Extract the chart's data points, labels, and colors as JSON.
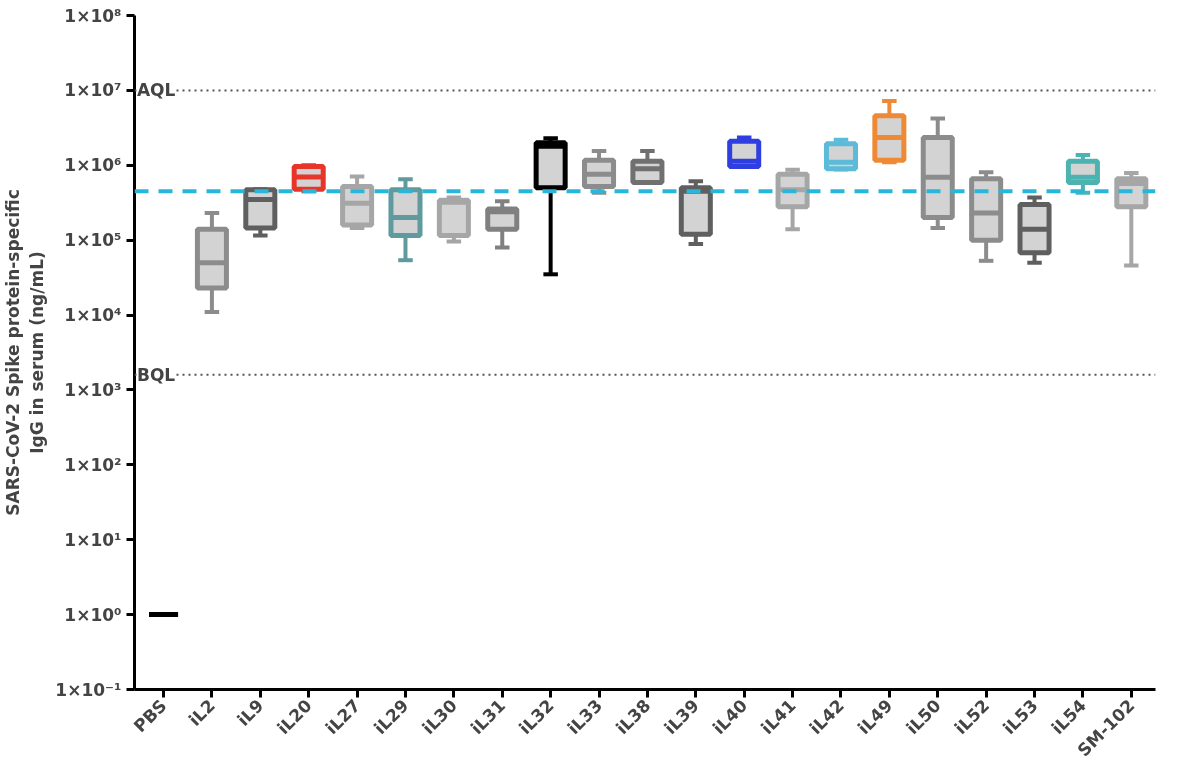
{
  "chart_data": {
    "type": "box",
    "ylabel": "SARS-CoV-2 Spike protein-specific\nIgG in serum (ng/mL)",
    "categories": [
      "PBS",
      "iL2",
      "iL9",
      "iL20",
      "iL27",
      "iL29",
      "iL30",
      "iL31",
      "iL32",
      "iL33",
      "iL38",
      "iL39",
      "iL40",
      "iL41",
      "iL42",
      "iL49",
      "iL50",
      "iL52",
      "iL53",
      "iL54",
      "SM-102"
    ],
    "colors": [
      "#000000",
      "#8c8c8c",
      "#5f5f5f",
      "#e8352a",
      "#a6a6a6",
      "#5e9a9e",
      "#a6a6a6",
      "#808080",
      "#000000",
      "#8c8c8c",
      "#707070",
      "#5f5f5f",
      "#2f3ee0",
      "#a6a6a6",
      "#5bbbd8",
      "#ee8a35",
      "#8c8c8c",
      "#8c8c8c",
      "#5f5f5f",
      "#4db3b0",
      "#a6a6a6"
    ],
    "boxes": [
      {
        "low": 1,
        "q1": 1,
        "median": 1,
        "q3": 1,
        "high": 1
      },
      {
        "low": 11000,
        "q1": 23000,
        "median": 50000,
        "q3": 140000,
        "high": 230000
      },
      {
        "low": 115000,
        "q1": 145000,
        "median": 350000,
        "q3": 470000,
        "high": 480000
      },
      {
        "low": 450000,
        "q1": 480000,
        "median": 700000,
        "q3": 960000,
        "high": 1000000
      },
      {
        "low": 145000,
        "q1": 160000,
        "median": 310000,
        "q3": 520000,
        "high": 710000
      },
      {
        "low": 54000,
        "q1": 115000,
        "median": 200000,
        "q3": 470000,
        "high": 650000
      },
      {
        "low": 96000,
        "q1": 115000,
        "median": 320000,
        "q3": 340000,
        "high": 370000
      },
      {
        "low": 80000,
        "q1": 140000,
        "median": 240000,
        "q3": 260000,
        "high": 330000
      },
      {
        "low": 35000,
        "q1": 500000,
        "median": 1800000,
        "q3": 2000000,
        "high": 2300000
      },
      {
        "low": 430000,
        "q1": 520000,
        "median": 760000,
        "q3": 1170000,
        "high": 1550000
      },
      {
        "low": 580000,
        "q1": 590000,
        "median": 900000,
        "q3": 1130000,
        "high": 1550000
      },
      {
        "low": 89000,
        "q1": 120000,
        "median": 450000,
        "q3": 500000,
        "high": 610000
      },
      {
        "low": 960000,
        "q1": 960000,
        "median": 1130000,
        "q3": 2100000,
        "high": 2350000
      },
      {
        "low": 140000,
        "q1": 280000,
        "median": 470000,
        "q3": 760000,
        "high": 870000
      },
      {
        "low": 880000,
        "q1": 900000,
        "median": 1100000,
        "q3": 1940000,
        "high": 2200000
      },
      {
        "low": 1100000,
        "q1": 1170000,
        "median": 2350000,
        "q3": 4600000,
        "high": 7200000
      },
      {
        "low": 145000,
        "q1": 200000,
        "median": 690000,
        "q3": 2350000,
        "high": 4200000
      },
      {
        "low": 53000,
        "q1": 100000,
        "median": 230000,
        "q3": 660000,
        "high": 810000
      },
      {
        "low": 50000,
        "q1": 68000,
        "median": 140000,
        "q3": 300000,
        "high": 370000
      },
      {
        "low": 430000,
        "q1": 590000,
        "median": 690000,
        "q3": 1130000,
        "high": 1370000
      },
      {
        "low": 46000,
        "q1": 280000,
        "median": 570000,
        "q3": 660000,
        "high": 790000
      }
    ],
    "log": "y",
    "ylim": [
      0.1,
      100000000
    ],
    "yticks": [
      {
        "value": 0.1,
        "label": "1×10⁻¹"
      },
      {
        "value": 1,
        "label": "1×10⁰"
      },
      {
        "value": 10,
        "label": "1×10¹"
      },
      {
        "value": 100,
        "label": "1×10²"
      },
      {
        "value": 1000,
        "label": "1×10³"
      },
      {
        "value": 10000,
        "label": "1×10⁴"
      },
      {
        "value": 100000,
        "label": "1×10⁵"
      },
      {
        "value": 1000000,
        "label": "1×10⁶"
      },
      {
        "value": 10000000,
        "label": "1×10⁷"
      },
      {
        "value": 100000000,
        "label": "1×10⁸"
      }
    ],
    "ref_lines": [
      {
        "axis": "y",
        "value": 10000000,
        "label": "AQL",
        "color": "#555555",
        "line_style": "dotted"
      },
      {
        "axis": "y",
        "value": 1600,
        "label": "BQL",
        "color": "#555555",
        "line_style": "dotted"
      },
      {
        "axis": "y",
        "value": 450000,
        "label": null,
        "color": "#29b6d8",
        "line_style": "dashed"
      }
    ],
    "grid": false
  }
}
